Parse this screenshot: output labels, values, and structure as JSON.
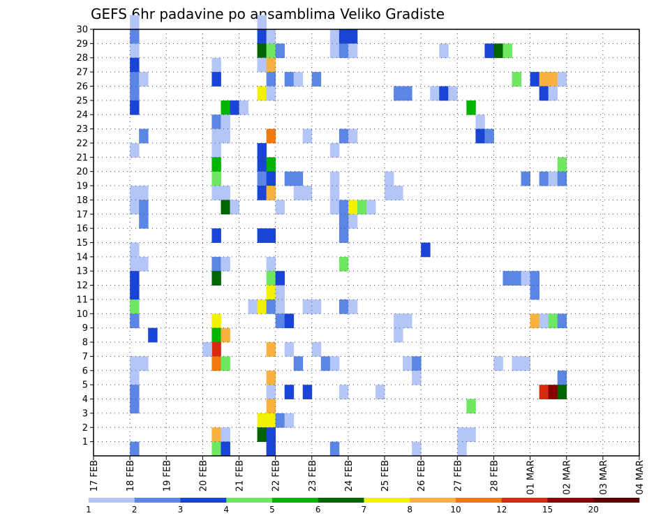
{
  "chart_data": {
    "type": "heatmap",
    "title": "GEFS 6hr padavine po ansamblima Veliko Gradiste",
    "xlabel": "",
    "ylabel": "",
    "x_ticks": [
      "17 FEB",
      "18 FEB",
      "19 FEB",
      "20 FEB",
      "21 FEB",
      "22 FEB",
      "23 FEB",
      "24 FEB",
      "25 FEB",
      "26 FEB",
      "27 FEB",
      "28 FEB",
      "01 MAR",
      "02 MAR",
      "03 MAR",
      "04 MAR"
    ],
    "y_ticks": [
      "1",
      "2",
      "3",
      "4",
      "5",
      "6",
      "7",
      "8",
      "9",
      "10",
      "11",
      "12",
      "13",
      "14",
      "15",
      "16",
      "17",
      "18",
      "19",
      "20",
      "21",
      "22",
      "23",
      "24",
      "25",
      "26",
      "27",
      "28",
      "29",
      "30"
    ],
    "ylim": [
      0,
      30
    ],
    "grid": true,
    "legend_position": "bottom",
    "levels": [
      "1",
      "2",
      "3",
      "4",
      "5",
      "6",
      "7",
      "8",
      "10",
      "12",
      "15",
      "20"
    ],
    "colors": {
      "l1": "#b3c6f7",
      "l2": "#5b86e5",
      "l3": "#1a44d6",
      "l4": "#6de860",
      "l5": "#00b400",
      "l6": "#006400",
      "l7": "#f2f200",
      "l8": "#f9b23f",
      "l10": "#f07a10",
      "l12": "#d62a10",
      "l15": "#8a0000",
      "l20": "#5c0000"
    },
    "legend_colors": [
      "#b3c6f7",
      "#5b86e5",
      "#1a44d6",
      "#6de860",
      "#00b400",
      "#006400",
      "#f2f200",
      "#f9b23f",
      "#f07a10",
      "#d62a10",
      "#8a0000",
      "#5c0000"
    ],
    "cell_legend": "each cell = [6-hour step from 17 FEB 00 UTC, ensemble member, precipitation class key into colors]",
    "cells": [
      [
        4,
        30,
        "l1"
      ],
      [
        4,
        29,
        "l2"
      ],
      [
        4,
        28,
        "l1"
      ],
      [
        4,
        27,
        "l3"
      ],
      [
        4,
        26,
        "l2"
      ],
      [
        5,
        26,
        "l1"
      ],
      [
        4,
        25,
        "l2"
      ],
      [
        4,
        24,
        "l3"
      ],
      [
        5,
        22,
        "l2"
      ],
      [
        4,
        21,
        "l1"
      ],
      [
        4,
        18,
        "l1"
      ],
      [
        5,
        18,
        "l1"
      ],
      [
        4,
        17,
        "l1"
      ],
      [
        5,
        17,
        "l2"
      ],
      [
        5,
        16,
        "l2"
      ],
      [
        4,
        14,
        "l1"
      ],
      [
        4,
        13,
        "l1"
      ],
      [
        5,
        13,
        "l1"
      ],
      [
        4,
        12,
        "l3"
      ],
      [
        4,
        11,
        "l3"
      ],
      [
        4,
        10,
        "l4"
      ],
      [
        4,
        9,
        "l2"
      ],
      [
        6,
        8,
        "l3"
      ],
      [
        4,
        6,
        "l1"
      ],
      [
        5,
        6,
        "l1"
      ],
      [
        4,
        5,
        "l1"
      ],
      [
        4,
        4,
        "l2"
      ],
      [
        4,
        3,
        "l2"
      ],
      [
        4,
        0,
        "l2"
      ],
      [
        13,
        27,
        "l1"
      ],
      [
        13,
        26,
        "l3"
      ],
      [
        14,
        24,
        "l5"
      ],
      [
        15,
        24,
        "l3"
      ],
      [
        16,
        24,
        "l1"
      ],
      [
        13,
        23,
        "l2"
      ],
      [
        14,
        23,
        "l1"
      ],
      [
        13,
        22,
        "l1"
      ],
      [
        14,
        22,
        "l1"
      ],
      [
        13,
        21,
        "l1"
      ],
      [
        13,
        20,
        "l5"
      ],
      [
        13,
        19,
        "l4"
      ],
      [
        13,
        18,
        "l1"
      ],
      [
        14,
        18,
        "l1"
      ],
      [
        14,
        17,
        "l6"
      ],
      [
        15,
        17,
        "l1"
      ],
      [
        13,
        15,
        "l3"
      ],
      [
        13,
        13,
        "l2"
      ],
      [
        14,
        13,
        "l1"
      ],
      [
        13,
        12,
        "l6"
      ],
      [
        13,
        9,
        "l7"
      ],
      [
        13,
        8,
        "l5"
      ],
      [
        14,
        8,
        "l8"
      ],
      [
        13,
        7,
        "l12"
      ],
      [
        12,
        7,
        "l1"
      ],
      [
        13,
        6,
        "l10"
      ],
      [
        14,
        6,
        "l4"
      ],
      [
        13,
        1,
        "l8"
      ],
      [
        14,
        1,
        "l1"
      ],
      [
        13,
        0,
        "l4"
      ],
      [
        14,
        0,
        "l3"
      ],
      [
        18,
        30,
        "l1"
      ],
      [
        18,
        29,
        "l3"
      ],
      [
        19,
        29,
        "l1"
      ],
      [
        18,
        28,
        "l6"
      ],
      [
        19,
        28,
        "l4"
      ],
      [
        20,
        28,
        "l2"
      ],
      [
        18,
        27,
        "l1"
      ],
      [
        19,
        27,
        "l8"
      ],
      [
        19,
        26,
        "l2"
      ],
      [
        18,
        25,
        "l7"
      ],
      [
        19,
        25,
        "l1"
      ],
      [
        19,
        22,
        "l10"
      ],
      [
        18,
        21,
        "l3"
      ],
      [
        18,
        20,
        "l3"
      ],
      [
        19,
        20,
        "l5"
      ],
      [
        18,
        19,
        "l2"
      ],
      [
        19,
        19,
        "l3"
      ],
      [
        18,
        18,
        "l3"
      ],
      [
        19,
        18,
        "l8"
      ],
      [
        18,
        15,
        "l3"
      ],
      [
        19,
        15,
        "l3"
      ],
      [
        20,
        17,
        "l1"
      ],
      [
        19,
        13,
        "l1"
      ],
      [
        19,
        12,
        "l4"
      ],
      [
        20,
        12,
        "l3"
      ],
      [
        19,
        11,
        "l7"
      ],
      [
        20,
        11,
        "l1"
      ],
      [
        17,
        10,
        "l1"
      ],
      [
        18,
        10,
        "l7"
      ],
      [
        19,
        10,
        "l2"
      ],
      [
        20,
        10,
        "l1"
      ],
      [
        20,
        9,
        "l2"
      ],
      [
        21,
        9,
        "l3"
      ],
      [
        19,
        7,
        "l8"
      ],
      [
        19,
        5,
        "l8"
      ],
      [
        19,
        4,
        "l1"
      ],
      [
        19,
        3,
        "l8"
      ],
      [
        18,
        2,
        "l7"
      ],
      [
        19,
        2,
        "l7"
      ],
      [
        20,
        2,
        "l2"
      ],
      [
        21,
        2,
        "l1"
      ],
      [
        18,
        1,
        "l6"
      ],
      [
        19,
        1,
        "l3"
      ],
      [
        19,
        0,
        "l3"
      ],
      [
        21,
        7,
        "l1"
      ],
      [
        22,
        6,
        "l2"
      ],
      [
        21,
        4,
        "l3"
      ],
      [
        23,
        4,
        "l3"
      ],
      [
        21,
        26,
        "l2"
      ],
      [
        22,
        26,
        "l1"
      ],
      [
        24,
        26,
        "l2"
      ],
      [
        21,
        19,
        "l2"
      ],
      [
        22,
        19,
        "l2"
      ],
      [
        22,
        18,
        "l1"
      ],
      [
        23,
        18,
        "l1"
      ],
      [
        23,
        22,
        "l1"
      ],
      [
        23,
        10,
        "l1"
      ],
      [
        24,
        10,
        "l1"
      ],
      [
        24,
        7,
        "l1"
      ],
      [
        26,
        29,
        "l1"
      ],
      [
        27,
        29,
        "l3"
      ],
      [
        28,
        29,
        "l3"
      ],
      [
        26,
        28,
        "l1"
      ],
      [
        27,
        28,
        "l2"
      ],
      [
        28,
        28,
        "l1"
      ],
      [
        27,
        22,
        "l2"
      ],
      [
        28,
        22,
        "l1"
      ],
      [
        26,
        21,
        "l1"
      ],
      [
        26,
        19,
        "l1"
      ],
      [
        26,
        18,
        "l1"
      ],
      [
        26,
        17,
        "l1"
      ],
      [
        27,
        17,
        "l2"
      ],
      [
        28,
        17,
        "l7"
      ],
      [
        29,
        17,
        "l4"
      ],
      [
        30,
        17,
        "l1"
      ],
      [
        28,
        16,
        "l1"
      ],
      [
        27,
        16,
        "l2"
      ],
      [
        27,
        15,
        "l2"
      ],
      [
        27,
        13,
        "l4"
      ],
      [
        27,
        10,
        "l2"
      ],
      [
        28,
        10,
        "l1"
      ],
      [
        25,
        6,
        "l2"
      ],
      [
        26,
        6,
        "l1"
      ],
      [
        27,
        4,
        "l1"
      ],
      [
        26,
        0,
        "l2"
      ],
      [
        33,
        25,
        "l2"
      ],
      [
        34,
        25,
        "l2"
      ],
      [
        32,
        19,
        "l1"
      ],
      [
        32,
        18,
        "l1"
      ],
      [
        33,
        18,
        "l1"
      ],
      [
        33,
        9,
        "l1"
      ],
      [
        34,
        9,
        "l1"
      ],
      [
        33,
        8,
        "l1"
      ],
      [
        34,
        6,
        "l1"
      ],
      [
        35,
        6,
        "l2"
      ],
      [
        35,
        5,
        "l1"
      ],
      [
        31,
        4,
        "l1"
      ],
      [
        36,
        14,
        "l3"
      ],
      [
        35,
        0,
        "l1"
      ],
      [
        38,
        28,
        "l1"
      ],
      [
        37,
        25,
        "l1"
      ],
      [
        38,
        25,
        "l3"
      ],
      [
        39,
        25,
        "l1"
      ],
      [
        41,
        24,
        "l5"
      ],
      [
        42,
        23,
        "l1"
      ],
      [
        42,
        22,
        "l3"
      ],
      [
        43,
        22,
        "l2"
      ],
      [
        41,
        3,
        "l4"
      ],
      [
        40,
        1,
        "l1"
      ],
      [
        41,
        1,
        "l1"
      ],
      [
        40,
        0,
        "l1"
      ],
      [
        43,
        28,
        "l3"
      ],
      [
        44,
        28,
        "l6"
      ],
      [
        45,
        28,
        "l4"
      ],
      [
        46,
        26,
        "l4"
      ],
      [
        48,
        26,
        "l3"
      ],
      [
        49,
        26,
        "l8"
      ],
      [
        50,
        26,
        "l8"
      ],
      [
        51,
        26,
        "l1"
      ],
      [
        49,
        25,
        "l3"
      ],
      [
        50,
        25,
        "l1"
      ],
      [
        51,
        20,
        "l4"
      ],
      [
        47,
        19,
        "l2"
      ],
      [
        49,
        19,
        "l2"
      ],
      [
        50,
        19,
        "l1"
      ],
      [
        51,
        19,
        "l2"
      ],
      [
        45,
        12,
        "l2"
      ],
      [
        46,
        12,
        "l2"
      ],
      [
        47,
        12,
        "l1"
      ],
      [
        48,
        12,
        "l2"
      ],
      [
        48,
        11,
        "l2"
      ],
      [
        48,
        9,
        "l8"
      ],
      [
        49,
        9,
        "l1"
      ],
      [
        50,
        9,
        "l4"
      ],
      [
        51,
        9,
        "l2"
      ],
      [
        44,
        6,
        "l1"
      ],
      [
        46,
        6,
        "l1"
      ],
      [
        47,
        6,
        "l1"
      ],
      [
        51,
        5,
        "l2"
      ],
      [
        49,
        4,
        "l12"
      ],
      [
        50,
        4,
        "l15"
      ],
      [
        51,
        4,
        "l6"
      ]
    ]
  }
}
